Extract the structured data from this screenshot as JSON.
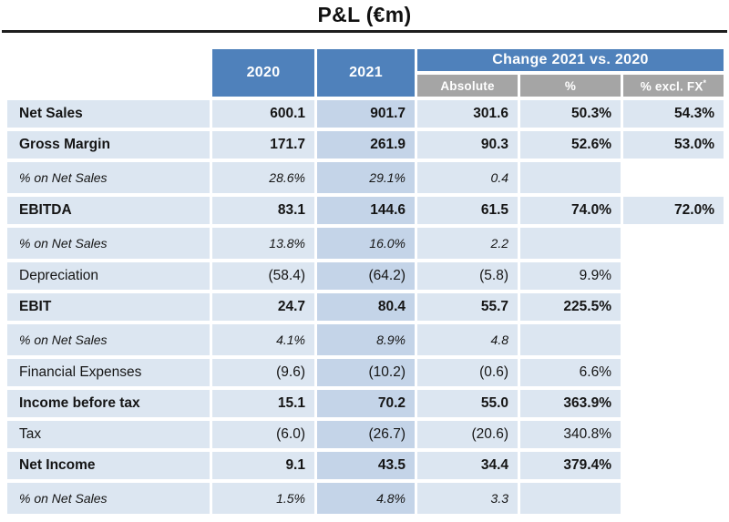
{
  "title": "P&L (€m)",
  "header": {
    "col_2020": "2020",
    "col_2021": "2021",
    "change_group": "Change 2021 vs. 2020",
    "sub_absolute": "Absolute",
    "sub_pct": "%",
    "sub_fx": "% excl. FX",
    "sub_fx_sup": "*"
  },
  "colors": {
    "header_blue": "#4f81bb",
    "header_gray": "#a5a5a5",
    "row_fill": "#dce6f1",
    "col_2021_fill": "#c4d4e8",
    "rule": "#1e1e1e"
  },
  "rows": [
    {
      "label": "Net Sales",
      "style": "bold",
      "values": [
        "600.1",
        "901.7",
        "301.6",
        "50.3%",
        "54.3%"
      ]
    },
    {
      "label": "Gross Margin",
      "style": "bold",
      "values": [
        "171.7",
        "261.9",
        "90.3",
        "52.6%",
        "53.0%"
      ]
    },
    {
      "label": "% on Net Sales",
      "style": "italic",
      "values": [
        "28.6%",
        "29.1%",
        "0.4",
        "",
        null
      ]
    },
    {
      "label": "EBITDA",
      "style": "bold",
      "values": [
        "83.1",
        "144.6",
        "61.5",
        "74.0%",
        "72.0%"
      ]
    },
    {
      "label": "% on Net Sales",
      "style": "italic",
      "values": [
        "13.8%",
        "16.0%",
        "2.2",
        "",
        null
      ]
    },
    {
      "label": "Depreciation",
      "style": "regular",
      "values": [
        "(58.4)",
        "(64.2)",
        "(5.8)",
        "9.9%",
        null
      ]
    },
    {
      "label": "EBIT",
      "style": "bold",
      "values": [
        "24.7",
        "80.4",
        "55.7",
        "225.5%",
        null
      ]
    },
    {
      "label": "% on Net Sales",
      "style": "italic",
      "values": [
        "4.1%",
        "8.9%",
        "4.8",
        "",
        null
      ]
    },
    {
      "label": "Financial Expenses",
      "style": "regular",
      "values": [
        "(9.6)",
        "(10.2)",
        "(0.6)",
        "6.6%",
        null
      ]
    },
    {
      "label": "Income before tax",
      "style": "bold",
      "values": [
        "15.1",
        "70.2",
        "55.0",
        "363.9%",
        null
      ]
    },
    {
      "label": "Tax",
      "style": "regular",
      "values": [
        "(6.0)",
        "(26.7)",
        "(20.6)",
        "340.8%",
        null
      ]
    },
    {
      "label": "Net Income",
      "style": "bold",
      "values": [
        "9.1",
        "43.5",
        "34.4",
        "379.4%",
        null
      ]
    },
    {
      "label": "% on Net Sales",
      "style": "italic",
      "values": [
        "1.5%",
        "4.8%",
        "3.3",
        "",
        null
      ]
    }
  ]
}
